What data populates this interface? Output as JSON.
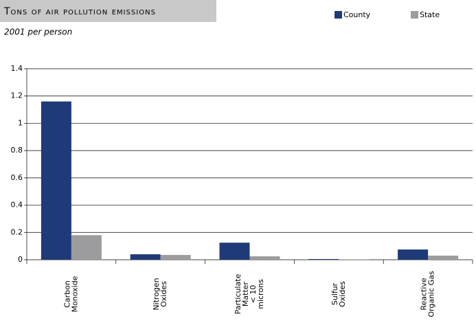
{
  "chart_data": {
    "type": "bar",
    "title": "Tons of air pollution emissions",
    "subtitle": "2001 per person",
    "categories": [
      [
        "Carbon",
        "Monoxide"
      ],
      [
        "Nitrogen",
        "Oxides"
      ],
      [
        "Particulate",
        "Matter",
        "< 10",
        "microns"
      ],
      [
        "Sulfur",
        "Oxides"
      ],
      [
        "Reactive",
        "Organic Gas"
      ]
    ],
    "series": [
      {
        "name": "County",
        "color": "#1f3a78",
        "values": [
          1.16,
          0.04,
          0.125,
          0.005,
          0.075
        ]
      },
      {
        "name": "State",
        "color": "#9c9c9e",
        "values": [
          0.18,
          0.035,
          0.025,
          0.003,
          0.03
        ]
      }
    ],
    "ylim": [
      0,
      1.4
    ],
    "yticks": [
      0,
      0.2,
      0.4,
      0.6,
      0.8,
      1,
      1.2,
      1.4
    ],
    "grid": true
  }
}
